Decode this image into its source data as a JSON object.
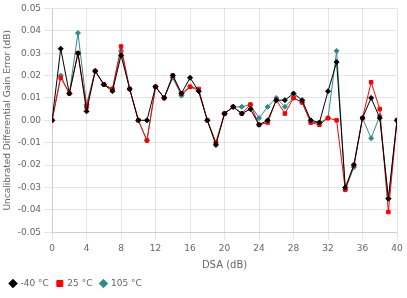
{
  "chart_data": {
    "type": "line",
    "x_label": "DSA (dB)",
    "y_label": "Uncalibrated Differential Gain Error (dB)",
    "x": [
      0,
      1,
      2,
      3,
      4,
      5,
      6,
      7,
      8,
      9,
      10,
      11,
      12,
      13,
      14,
      15,
      16,
      17,
      18,
      19,
      20,
      21,
      22,
      23,
      24,
      25,
      26,
      27,
      28,
      29,
      30,
      31,
      32,
      33,
      34,
      35,
      36,
      37,
      38,
      39,
      40
    ],
    "series": [
      {
        "name": "-40 °C",
        "color": "#000000",
        "marker": "diamond",
        "values": [
          0.0,
          0.032,
          0.012,
          0.03,
          0.004,
          0.022,
          0.016,
          0.013,
          0.029,
          0.014,
          0.0,
          0.0,
          0.015,
          0.01,
          0.02,
          0.012,
          0.019,
          0.013,
          0.0,
          -0.011,
          0.003,
          0.006,
          0.003,
          0.005,
          -0.002,
          0.0,
          0.009,
          0.009,
          0.012,
          0.009,
          0.0,
          -0.001,
          0.013,
          0.026,
          -0.03,
          -0.02,
          0.001,
          0.01,
          0.001,
          -0.035,
          0.0
        ]
      },
      {
        "name": "25 °C",
        "color": "#ff0000",
        "marker": "square",
        "values": [
          0.0,
          0.019,
          0.012,
          0.03,
          0.006,
          0.022,
          0.016,
          0.014,
          0.033,
          0.014,
          0.0,
          -0.009,
          0.015,
          0.01,
          0.02,
          0.012,
          0.015,
          0.014,
          0.0,
          -0.01,
          0.003,
          0.006,
          0.003,
          0.007,
          -0.002,
          -0.001,
          0.009,
          0.003,
          0.01,
          0.008,
          -0.001,
          -0.002,
          0.001,
          0.0,
          -0.031,
          -0.02,
          0.001,
          0.017,
          0.005,
          -0.041,
          0.0
        ]
      },
      {
        "name": "105 °C",
        "color": "#2e8b8b",
        "marker": "diamond",
        "values": [
          0.0,
          0.02,
          0.012,
          0.039,
          0.007,
          0.022,
          0.016,
          0.014,
          0.031,
          0.014,
          0.0,
          -0.009,
          0.015,
          0.01,
          0.019,
          0.011,
          0.015,
          0.013,
          0.0,
          -0.01,
          0.003,
          0.006,
          0.006,
          0.007,
          0.001,
          0.006,
          0.01,
          0.006,
          0.01,
          0.008,
          -0.001,
          -0.001,
          0.001,
          0.031,
          -0.031,
          -0.021,
          0.001,
          -0.008,
          0.002,
          -0.035,
          0.0
        ]
      }
    ],
    "xlim": [
      0,
      40
    ],
    "ylim": [
      -0.05,
      0.05
    ],
    "xticks": [
      0,
      4,
      8,
      12,
      16,
      20,
      24,
      28,
      32,
      36,
      40
    ],
    "yticks": [
      -0.05,
      -0.04,
      -0.03,
      -0.02,
      -0.01,
      {
        "value": 0,
        "label": "0.00"
      },
      0.01,
      0.02,
      0.03,
      0.04,
      0.05
    ],
    "grid": true,
    "legend": "lower left"
  }
}
